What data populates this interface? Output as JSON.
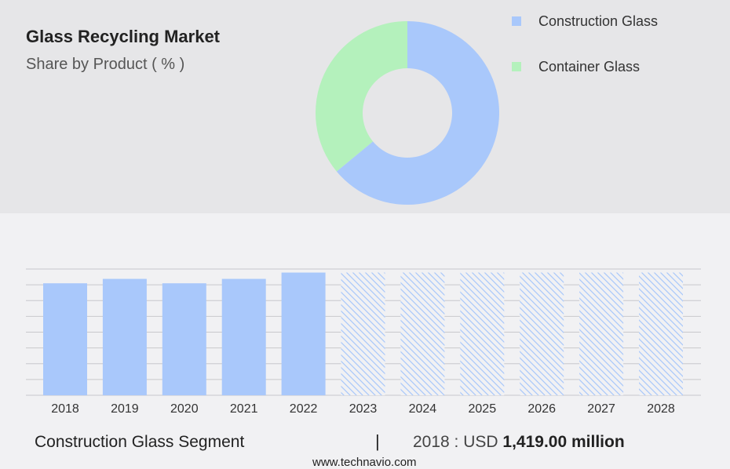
{
  "header": {
    "title": "Glass Recycling Market",
    "subtitle": "Share by Product ( % )"
  },
  "chart_data": [
    {
      "type": "pie",
      "variant": "donut",
      "title": "Glass Recycling Market",
      "subtitle": "Share by Product ( % )",
      "slices": [
        {
          "name": "Construction Glass",
          "value": 64,
          "color": "#a9c8fb"
        },
        {
          "name": "Container Glass",
          "value": 36,
          "color": "#b4f1bc"
        }
      ],
      "legend_position": "right"
    },
    {
      "type": "bar",
      "categories": [
        "2018",
        "2019",
        "2020",
        "2021",
        "2022",
        "2023",
        "2024",
        "2025",
        "2026",
        "2027",
        "2028"
      ],
      "values": [
        1419,
        1475,
        1419,
        1475,
        1555,
        null,
        null,
        null,
        null,
        null,
        null
      ],
      "forecast_categories": [
        "2023",
        "2024",
        "2025",
        "2026",
        "2027",
        "2028"
      ],
      "forecast_display_value": 1555,
      "series_name": "Construction Glass",
      "ylim": [
        0,
        1600
      ],
      "grid": true,
      "bar_color": "#a9c8fb"
    }
  ],
  "footer": {
    "segment_label": "Construction Glass Segment",
    "separator": "|",
    "value_prefix": "2018 : USD",
    "value_text": "1,419.00 million"
  },
  "source": "www.technavio.com"
}
